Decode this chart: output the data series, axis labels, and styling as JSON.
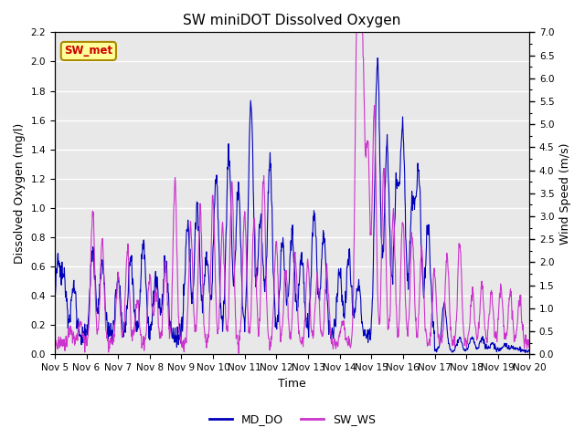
{
  "title": "SW miniDOT Dissolved Oxygen",
  "xlabel": "Time",
  "ylabel_left": "Dissolved Oxygen (mg/l)",
  "ylabel_right": "Wind Speed (m/s)",
  "ylim_left": [
    0.0,
    2.2
  ],
  "ylim_right": [
    0.0,
    7.0
  ],
  "yticks_left": [
    0.0,
    0.2,
    0.4,
    0.6,
    0.8,
    1.0,
    1.2,
    1.4,
    1.6,
    1.8,
    2.0,
    2.2
  ],
  "yticks_right": [
    0.0,
    0.5,
    1.0,
    1.5,
    2.0,
    2.5,
    3.0,
    3.5,
    4.0,
    4.5,
    5.0,
    5.5,
    6.0,
    6.5,
    7.0
  ],
  "color_do": "#0000bb",
  "color_ws": "#cc33cc",
  "annotation_text": "SW_met",
  "annotation_color": "#cc0000",
  "annotation_bg": "#ffff99",
  "annotation_edge": "#aa8800",
  "legend_labels": [
    "MD_DO",
    "SW_WS"
  ],
  "bg_color": "#e8e8e8",
  "grid_color": "#ffffff",
  "title_fontsize": 11,
  "axis_label_fontsize": 9,
  "tick_fontsize": 7.5,
  "legend_fontsize": 9,
  "linewidth_do": 0.8,
  "linewidth_ws": 0.8,
  "n_points": 1440,
  "xtick_labels": [
    "Nov 5",
    "Nov 6",
    "Nov 7",
    "Nov 8",
    "Nov 9",
    "Nov 10",
    "Nov 11",
    "Nov 12",
    "Nov 13",
    "Nov 14",
    "Nov 15",
    "Nov 16",
    "Nov 17",
    "Nov 18",
    "Nov 19",
    "Nov 20"
  ],
  "xtick_day_positions": [
    0,
    96,
    192,
    288,
    384,
    480,
    576,
    672,
    768,
    864,
    960,
    1056,
    1152,
    1248,
    1344,
    1440
  ]
}
